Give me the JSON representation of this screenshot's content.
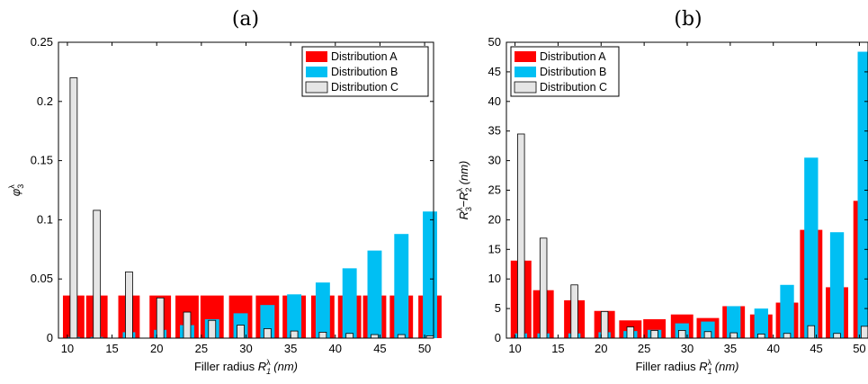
{
  "chart_data": [
    {
      "type": "bar",
      "title": "(a)",
      "xlabel": "Filler radius R_1^λ (nm)",
      "ylabel": "φ_3^λ",
      "xlim": [
        9,
        51
      ],
      "ylim": [
        0,
        0.25
      ],
      "xticks": [
        "10",
        "15",
        "20",
        "25",
        "30",
        "35",
        "40",
        "45",
        "50"
      ],
      "yticks": [
        "0",
        "0.05",
        "0.1",
        "0.15",
        "0.2",
        "0.25"
      ],
      "legend_position": "top-right",
      "series": [
        {
          "name": "Distribution A",
          "color": "#ff0000",
          "x": [
            10.7,
            13.3,
            16.9,
            20.4,
            23.4,
            26.2,
            29.4,
            32.4,
            35.4,
            38.6,
            41.6,
            44.4,
            47.4,
            50.6
          ],
          "width": [
            2.4,
            2.4,
            2.4,
            2.4,
            2.6,
            2.6,
            2.6,
            2.6,
            2.6,
            2.6,
            2.6,
            2.6,
            2.6,
            2.6
          ],
          "values": [
            0.036,
            0.036,
            0.036,
            0.036,
            0.036,
            0.036,
            0.036,
            0.036,
            0.036,
            0.036,
            0.036,
            0.036,
            0.036,
            0.036
          ]
        },
        {
          "name": "Distribution B",
          "color": "#00bff3",
          "x": [
            10.7,
            13.3,
            16.9,
            20.4,
            23.4,
            26.2,
            29.4,
            32.4,
            35.4,
            38.6,
            41.6,
            44.4,
            47.4,
            50.6
          ],
          "width": [
            1.4,
            1.4,
            1.4,
            1.4,
            1.6,
            1.6,
            1.6,
            1.6,
            1.6,
            1.6,
            1.6,
            1.6,
            1.6,
            1.6
          ],
          "values": [
            0.001,
            0.001,
            0.005,
            0.007,
            0.011,
            0.016,
            0.021,
            0.028,
            0.037,
            0.047,
            0.059,
            0.074,
            0.088,
            0.107
          ]
        },
        {
          "name": "Distribution C",
          "color": "#e5e5e5",
          "x": [
            10.7,
            13.3,
            16.9,
            20.4,
            23.4,
            26.2,
            29.4,
            32.4,
            35.4,
            38.6,
            41.6,
            44.4,
            47.4,
            50.6
          ],
          "width": [
            0.8,
            0.8,
            0.8,
            0.8,
            0.8,
            0.8,
            0.8,
            0.8,
            0.8,
            0.8,
            0.8,
            0.8,
            0.8,
            0.8
          ],
          "values": [
            0.22,
            0.108,
            0.056,
            0.034,
            0.022,
            0.015,
            0.011,
            0.008,
            0.006,
            0.005,
            0.004,
            0.003,
            0.003,
            0.002
          ]
        }
      ]
    },
    {
      "type": "bar",
      "title": "(b)",
      "xlabel": "Filler radius R_1^λ (nm)",
      "ylabel": "R_3^λ−R_2^λ (nm)",
      "xlim": [
        9,
        51
      ],
      "ylim": [
        0,
        50
      ],
      "xticks": [
        "10",
        "15",
        "20",
        "25",
        "30",
        "35",
        "40",
        "45",
        "50"
      ],
      "yticks": [
        "0",
        "5",
        "10",
        "15",
        "20",
        "25",
        "30",
        "35",
        "40",
        "45",
        "50"
      ],
      "legend_position": "top-left",
      "series": [
        {
          "name": "Distribution A",
          "color": "#ff0000",
          "x": [
            10.7,
            13.3,
            16.9,
            20.4,
            23.4,
            26.2,
            29.4,
            32.4,
            35.4,
            38.6,
            41.6,
            44.4,
            47.4,
            50.6
          ],
          "width": [
            2.4,
            2.4,
            2.4,
            2.4,
            2.6,
            2.6,
            2.6,
            2.6,
            2.6,
            2.6,
            2.6,
            2.6,
            2.6,
            2.6
          ],
          "values": [
            13.1,
            8.1,
            6.4,
            4.6,
            3.0,
            3.2,
            4.0,
            3.4,
            5.4,
            4.0,
            6.0,
            18.3,
            8.6,
            23.2
          ]
        },
        {
          "name": "Distribution B",
          "color": "#00bff3",
          "x": [
            10.7,
            13.3,
            16.9,
            20.4,
            23.4,
            26.2,
            29.4,
            32.4,
            35.4,
            38.6,
            41.6,
            44.4,
            47.4,
            50.6
          ],
          "width": [
            1.4,
            1.4,
            1.4,
            1.4,
            1.6,
            1.6,
            1.6,
            1.6,
            1.6,
            1.6,
            1.6,
            1.6,
            1.6,
            1.6
          ],
          "values": [
            0.8,
            0.8,
            0.8,
            1.0,
            1.2,
            1.4,
            2.5,
            2.8,
            5.4,
            5.0,
            9.0,
            30.5,
            17.9,
            48.4
          ]
        },
        {
          "name": "Distribution C",
          "color": "#e5e5e5",
          "x": [
            10.7,
            13.3,
            16.9,
            20.4,
            23.4,
            26.2,
            29.4,
            32.4,
            35.4,
            38.6,
            41.6,
            44.4,
            47.4,
            50.6
          ],
          "width": [
            0.8,
            0.8,
            0.8,
            0.8,
            0.8,
            0.8,
            0.8,
            0.8,
            0.8,
            0.8,
            0.8,
            0.8,
            0.8,
            0.8
          ],
          "values": [
            34.5,
            16.9,
            9.0,
            4.5,
            1.9,
            1.3,
            1.3,
            1.1,
            0.9,
            0.7,
            0.8,
            2.1,
            0.8,
            2.0
          ]
        }
      ]
    }
  ]
}
